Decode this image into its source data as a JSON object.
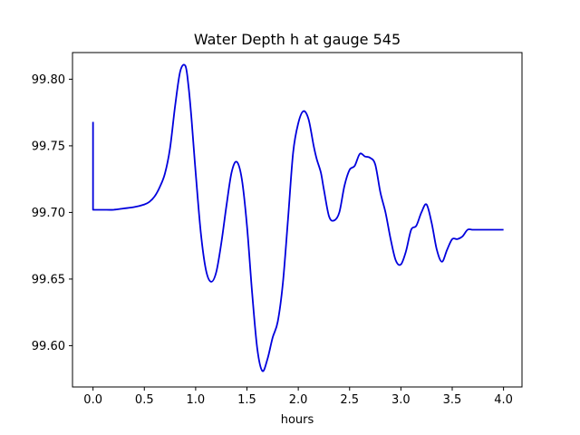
{
  "chart_data": {
    "type": "line",
    "title": "Water Depth h at gauge 545",
    "xlabel": "hours",
    "ylabel": "",
    "xlim": [
      -0.2,
      4.18
    ],
    "ylim": [
      99.569,
      99.82
    ],
    "xticks": [
      0.0,
      0.5,
      1.0,
      1.5,
      2.0,
      2.5,
      3.0,
      3.5,
      4.0
    ],
    "xtick_labels": [
      "0.0",
      "0.5",
      "1.0",
      "1.5",
      "2.0",
      "2.5",
      "3.0",
      "3.5",
      "4.0"
    ],
    "yticks": [
      99.6,
      99.65,
      99.7,
      99.75,
      99.8
    ],
    "ytick_labels": [
      "99.60",
      "99.65",
      "99.70",
      "99.75",
      "99.80"
    ],
    "grid": false,
    "series": [
      {
        "color": "#0000dd",
        "x": [
          0.0,
          0.0,
          0.0,
          0.1,
          0.2,
          0.3,
          0.4,
          0.5,
          0.55,
          0.6,
          0.65,
          0.7,
          0.75,
          0.8,
          0.85,
          0.9,
          0.93,
          0.96,
          1.0,
          1.05,
          1.1,
          1.15,
          1.2,
          1.25,
          1.3,
          1.35,
          1.4,
          1.45,
          1.5,
          1.55,
          1.6,
          1.65,
          1.7,
          1.75,
          1.8,
          1.85,
          1.9,
          1.95,
          2.0,
          2.05,
          2.1,
          2.15,
          2.18,
          2.22,
          2.25,
          2.3,
          2.35,
          2.4,
          2.45,
          2.5,
          2.55,
          2.6,
          2.65,
          2.7,
          2.75,
          2.8,
          2.85,
          2.9,
          2.95,
          3.0,
          3.05,
          3.1,
          3.15,
          3.2,
          3.25,
          3.3,
          3.35,
          3.4,
          3.45,
          3.5,
          3.55,
          3.6,
          3.65,
          3.7,
          3.75,
          3.8,
          3.85,
          3.9,
          3.95,
          4.0
        ],
        "y": [
          99.768,
          99.735,
          99.702,
          99.702,
          99.702,
          99.703,
          99.704,
          99.706,
          99.708,
          99.712,
          99.719,
          99.729,
          99.748,
          99.78,
          99.806,
          99.81,
          99.795,
          99.77,
          99.73,
          99.685,
          99.657,
          99.648,
          99.655,
          99.677,
          99.705,
          99.73,
          99.738,
          99.725,
          99.69,
          99.64,
          99.598,
          99.581,
          99.59,
          99.606,
          99.618,
          99.647,
          99.695,
          99.745,
          99.767,
          99.776,
          99.77,
          99.75,
          99.74,
          99.73,
          99.717,
          99.697,
          99.694,
          99.7,
          99.72,
          99.732,
          99.735,
          99.744,
          99.742,
          99.741,
          99.736,
          99.715,
          99.7,
          99.68,
          99.664,
          99.661,
          99.671,
          99.687,
          99.69,
          99.7,
          99.706,
          99.692,
          99.672,
          99.663,
          99.672,
          99.68,
          99.68,
          99.682,
          99.687,
          99.687,
          99.687,
          99.687,
          99.687,
          99.687,
          99.687,
          99.687
        ]
      }
    ]
  }
}
